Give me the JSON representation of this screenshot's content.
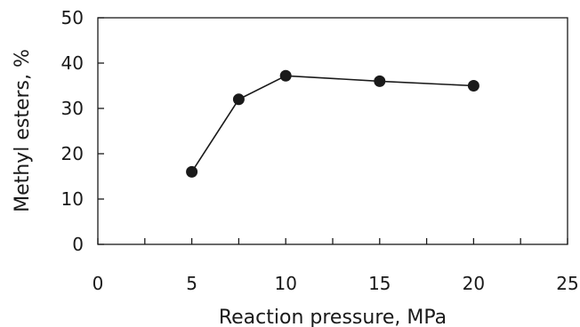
{
  "chart_data": {
    "type": "line",
    "title": "",
    "xlabel": "Reaction pressure, MPa",
    "ylabel": "Methyl esters, %",
    "xlim": [
      0,
      25
    ],
    "ylim": [
      0,
      50
    ],
    "x_ticks": [
      0,
      5,
      10,
      15,
      20,
      25
    ],
    "x_tick_labels": [
      "0",
      "5",
      "10",
      "15",
      "20",
      "25"
    ],
    "x_minor_ticks": [
      2.5,
      7.5,
      12.5,
      17.5,
      22.5
    ],
    "y_ticks": [
      0,
      10,
      20,
      30,
      40,
      50
    ],
    "y_tick_labels": [
      "0",
      "10",
      "20",
      "30",
      "40",
      "50"
    ],
    "grid": false,
    "legend": "none",
    "series": [
      {
        "x": [
          5,
          7.5,
          10,
          15,
          20
        ],
        "y": [
          16,
          32,
          37.2,
          36,
          35
        ]
      }
    ],
    "colors": {
      "line": "#1a1a1a",
      "marker": "#1a1a1a",
      "axis": "#1a1a1a"
    }
  }
}
